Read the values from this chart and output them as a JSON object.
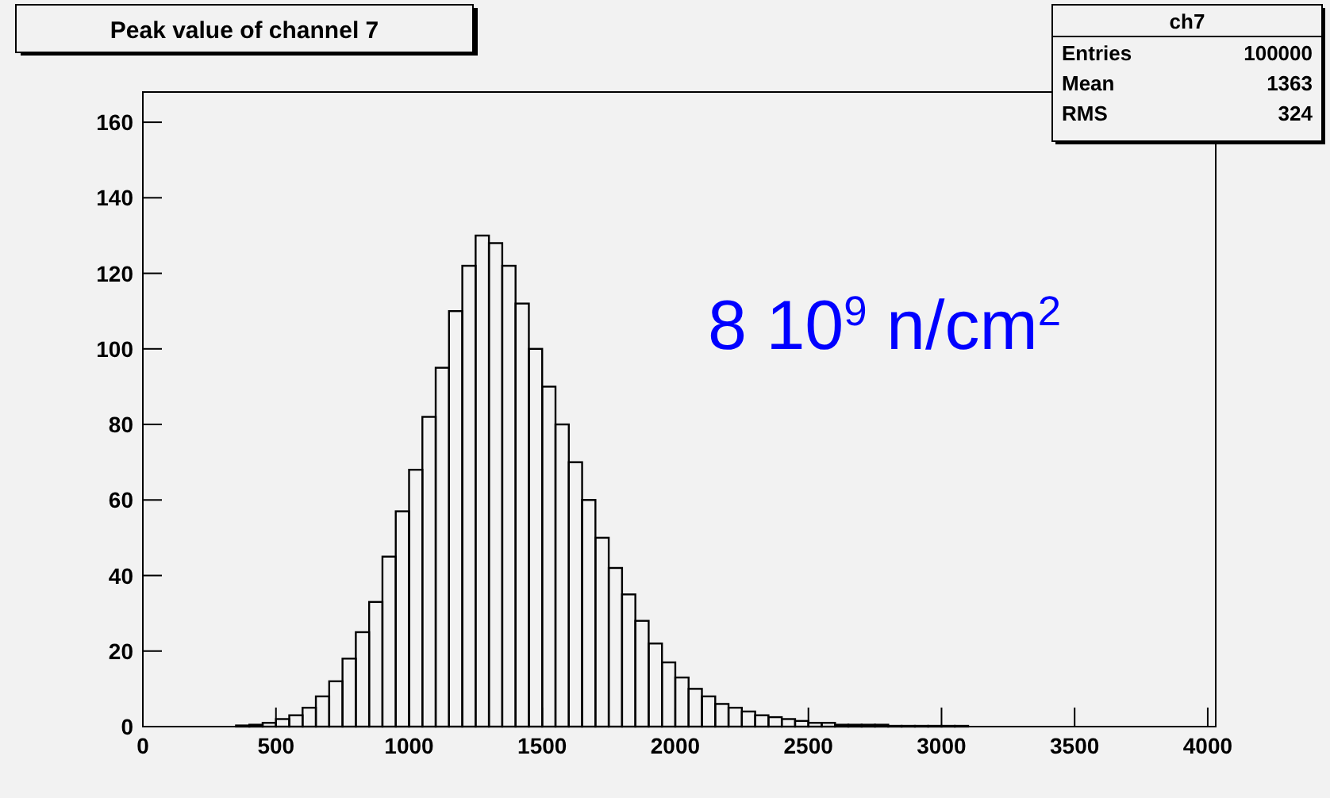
{
  "chart_data": {
    "type": "histogram",
    "title": "Peak value of channel 7",
    "bins": [
      300,
      350,
      400,
      450,
      500,
      550,
      600,
      650,
      700,
      750,
      800,
      850,
      900,
      950,
      1000,
      1050,
      1100,
      1150,
      1200,
      1250,
      1300,
      1350,
      1400,
      1450,
      1500,
      1550,
      1600,
      1650,
      1700,
      1750,
      1800,
      1850,
      1900,
      1950,
      2000,
      2050,
      2100,
      2150,
      2200,
      2250,
      2300,
      2350,
      2400,
      2450,
      2500,
      2550,
      2600,
      2650,
      2700,
      2750,
      2800,
      2850,
      2900,
      2950,
      3000,
      3050,
      3100
    ],
    "values": [
      0,
      0.3,
      0.5,
      1,
      2,
      3,
      5,
      8,
      12,
      18,
      25,
      33,
      45,
      57,
      68,
      82,
      95,
      110,
      122,
      130,
      128,
      122,
      112,
      100,
      90,
      80,
      70,
      60,
      50,
      42,
      35,
      28,
      22,
      17,
      13,
      10,
      8,
      6,
      5,
      4,
      3,
      2.5,
      2,
      1.5,
      1,
      1,
      0.5,
      0.5,
      0.5,
      0.5,
      0.2,
      0.2,
      0.2,
      0.2,
      0.2,
      0.2
    ],
    "color": "#000000",
    "xlim": [
      0,
      4030
    ],
    "xticks": [
      0,
      500,
      1000,
      1500,
      2000,
      2500,
      3000,
      3500,
      4000
    ],
    "ylim": [
      0,
      168
    ],
    "yticks": [
      0,
      20,
      40,
      60,
      80,
      100,
      120,
      140,
      160
    ],
    "annotations": [
      "ch7",
      "Entries",
      "100000",
      "Mean",
      "1363",
      "RMS",
      "324",
      "8 10$^{9}$ n/cm$^{2}$"
    ]
  }
}
